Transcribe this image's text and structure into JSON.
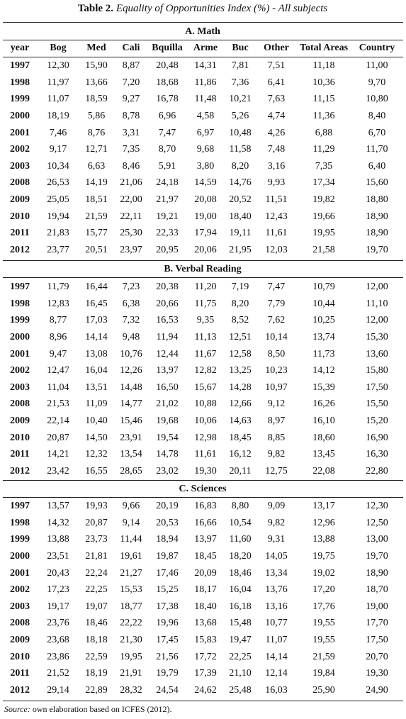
{
  "title": {
    "label": "Table 2.",
    "text": "Equality of Opportunities Index (%) - All subjects"
  },
  "table": {
    "columns": [
      "year",
      "Bog",
      "Med",
      "Cali",
      "Bquilla",
      "Arme",
      "Buc",
      "Other",
      "Total Areas",
      "Country"
    ],
    "sections": [
      {
        "title": "A. Math",
        "rows": [
          [
            "1997",
            "12,30",
            "15,90",
            "8,87",
            "20,48",
            "14,31",
            "7,81",
            "7,51",
            "11,18",
            "11,00"
          ],
          [
            "1998",
            "11,97",
            "13,66",
            "7,20",
            "18,68",
            "11,86",
            "7,36",
            "6,41",
            "10,36",
            "9,70"
          ],
          [
            "1999",
            "11,07",
            "18,59",
            "9,27",
            "16,78",
            "11,48",
            "10,21",
            "7,63",
            "11,15",
            "10,80"
          ],
          [
            "2000",
            "18,19",
            "5,86",
            "8,78",
            "6,96",
            "4,58",
            "5,26",
            "4,74",
            "11,36",
            "8,40"
          ],
          [
            "2001",
            "7,46",
            "8,76",
            "3,31",
            "7,47",
            "6,97",
            "10,48",
            "4,26",
            "6,88",
            "6,70"
          ],
          [
            "2002",
            "9,17",
            "12,71",
            "7,35",
            "8,70",
            "9,68",
            "11,58",
            "7,48",
            "11,29",
            "11,70"
          ],
          [
            "2003",
            "10,34",
            "6,63",
            "8,46",
            "5,91",
            "3,80",
            "8,20",
            "3,16",
            "7,35",
            "6,40"
          ],
          [
            "2008",
            "26,53",
            "14,19",
            "21,06",
            "24,18",
            "14,59",
            "14,76",
            "9,93",
            "17,34",
            "15,60"
          ],
          [
            "2009",
            "25,05",
            "18,51",
            "22,00",
            "21,97",
            "20,08",
            "20,52",
            "11,51",
            "19,82",
            "18,80"
          ],
          [
            "2010",
            "19,94",
            "21,59",
            "22,11",
            "19,21",
            "19,00",
            "18,40",
            "12,43",
            "19,66",
            "18,90"
          ],
          [
            "2011",
            "21,83",
            "15,77",
            "25,30",
            "22,33",
            "17,94",
            "19,11",
            "11,61",
            "19,95",
            "18,90"
          ],
          [
            "2012",
            "23,77",
            "20,51",
            "23,97",
            "20,95",
            "20,06",
            "21,95",
            "12,03",
            "21,58",
            "19,70"
          ]
        ]
      },
      {
        "title": "B. Verbal Reading",
        "rows": [
          [
            "1997",
            "11,79",
            "16,44",
            "7,23",
            "20,38",
            "11,20",
            "7,19",
            "7,47",
            "10,79",
            "12,00"
          ],
          [
            "1998",
            "12,83",
            "16,45",
            "6,38",
            "20,66",
            "11,75",
            "8,20",
            "7,79",
            "10,44",
            "11,10"
          ],
          [
            "1999",
            "8,77",
            "17,03",
            "7,32",
            "16,53",
            "9,35",
            "8,52",
            "7,62",
            "10,25",
            "12,00"
          ],
          [
            "2000",
            "8,96",
            "14,14",
            "9,48",
            "11,94",
            "11,13",
            "12,51",
            "10,14",
            "13,74",
            "15,30"
          ],
          [
            "2001",
            "9,47",
            "13,08",
            "10,76",
            "12,44",
            "11,67",
            "12,58",
            "8,50",
            "11,73",
            "13,60"
          ],
          [
            "2002",
            "12,47",
            "16,04",
            "12,26",
            "13,97",
            "12,82",
            "13,25",
            "10,23",
            "14,12",
            "15,80"
          ],
          [
            "2003",
            "11,04",
            "13,51",
            "14,48",
            "16,50",
            "15,67",
            "14,28",
            "10,97",
            "15,39",
            "17,50"
          ],
          [
            "2008",
            "21,53",
            "11,09",
            "14,77",
            "21,02",
            "10,88",
            "12,66",
            "9,12",
            "16,26",
            "15,50"
          ],
          [
            "2009",
            "22,14",
            "10,40",
            "15,46",
            "19,68",
            "10,06",
            "14,63",
            "8,97",
            "16,10",
            "15,20"
          ],
          [
            "2010",
            "20,87",
            "14,50",
            "23,91",
            "19,54",
            "12,98",
            "18,45",
            "8,85",
            "18,60",
            "16,90"
          ],
          [
            "2011",
            "14,21",
            "12,32",
            "13,54",
            "14,78",
            "11,61",
            "16,12",
            "9,82",
            "13,45",
            "16,30"
          ],
          [
            "2012",
            "23,42",
            "16,55",
            "28,65",
            "23,02",
            "19,30",
            "20,11",
            "12,75",
            "22,08",
            "22,80"
          ]
        ]
      },
      {
        "title": "C. Sciences",
        "rows": [
          [
            "1997",
            "13,57",
            "19,93",
            "9,66",
            "20,19",
            "16,83",
            "8,80",
            "9,09",
            "13,17",
            "12,30"
          ],
          [
            "1998",
            "14,32",
            "20,87",
            "9,14",
            "20,53",
            "16,66",
            "10,54",
            "9,82",
            "12,96",
            "12,50"
          ],
          [
            "1999",
            "13,88",
            "23,73",
            "11,44",
            "18,94",
            "13,97",
            "11,60",
            "9,31",
            "13,88",
            "13,00"
          ],
          [
            "2000",
            "23,51",
            "21,81",
            "19,61",
            "19,87",
            "18,45",
            "18,20",
            "14,05",
            "19,75",
            "19,70"
          ],
          [
            "2001",
            "20,43",
            "22,24",
            "21,27",
            "17,46",
            "20,09",
            "18,46",
            "13,34",
            "19,02",
            "18,90"
          ],
          [
            "2002",
            "17,23",
            "22,25",
            "15,53",
            "15,25",
            "18,17",
            "16,04",
            "13,76",
            "17,20",
            "18,70"
          ],
          [
            "2003",
            "19,17",
            "19,07",
            "18,77",
            "17,38",
            "18,40",
            "16,18",
            "13,16",
            "17,76",
            "19,00"
          ],
          [
            "2008",
            "23,76",
            "18,46",
            "22,22",
            "19,96",
            "13,68",
            "15,48",
            "10,77",
            "19,55",
            "17,70"
          ],
          [
            "2009",
            "23,68",
            "18,18",
            "21,30",
            "17,45",
            "15,83",
            "19,47",
            "11,07",
            "19,55",
            "17,50"
          ],
          [
            "2010",
            "23,86",
            "22,59",
            "19,95",
            "21,56",
            "17,72",
            "22,25",
            "14,14",
            "21,59",
            "20,70"
          ],
          [
            "2011",
            "21,52",
            "18,19",
            "21,91",
            "19,79",
            "17,39",
            "21,10",
            "12,14",
            "19,84",
            "19,30"
          ],
          [
            "2012",
            "29,14",
            "22,89",
            "28,32",
            "24,54",
            "24,62",
            "25,48",
            "16,03",
            "25,90",
            "24,90"
          ]
        ]
      }
    ]
  },
  "source": {
    "label": "Source:",
    "text": "own elaboration based on ICFES (2012)."
  }
}
